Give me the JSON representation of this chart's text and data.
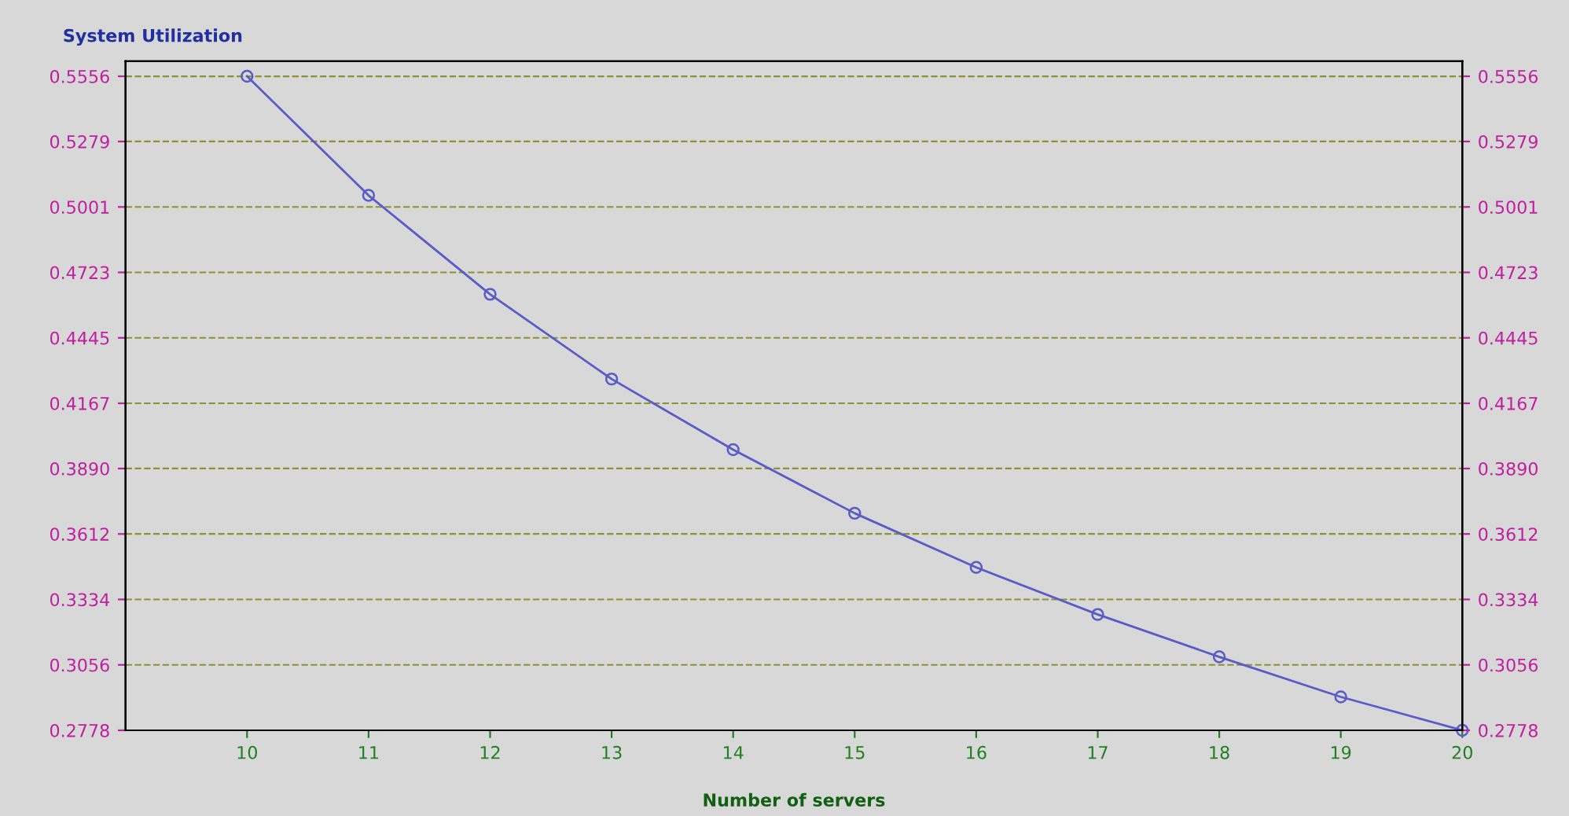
{
  "chart_data": {
    "type": "line",
    "title": "System Utilization",
    "xlabel": "Number of servers",
    "x": [
      10,
      11,
      12,
      13,
      14,
      15,
      16,
      17,
      18,
      19,
      20
    ],
    "series": [
      {
        "color": "#5a5ac8",
        "values": [
          0.5556,
          0.505,
          0.463,
          0.427,
          0.397,
          0.37,
          0.347,
          0.327,
          0.309,
          0.292,
          0.2778
        ]
      }
    ],
    "xlim": [
      9,
      20
    ],
    "xticks": [
      10,
      11,
      12,
      13,
      14,
      15,
      16,
      17,
      18,
      19,
      20
    ],
    "ylim": [
      0.2778,
      0.562
    ],
    "yticks": [
      0.2778,
      0.3056,
      0.3334,
      0.3612,
      {
        "value": 0.389,
        "label": "0.3890"
      },
      0.4167,
      0.4445,
      0.4723,
      0.5001,
      0.5279,
      0.5556
    ],
    "y2lim": [
      0.2778,
      0.562
    ],
    "y2ticks": [
      0.2778,
      0.3056,
      0.3334,
      0.3612,
      {
        "value": 0.389,
        "label": "0.3890"
      },
      0.4167,
      0.4445,
      0.4723,
      0.5001,
      0.5279,
      0.5556
    ],
    "grid": "y",
    "marker": "circle",
    "line_style": "solid",
    "legend": false
  }
}
